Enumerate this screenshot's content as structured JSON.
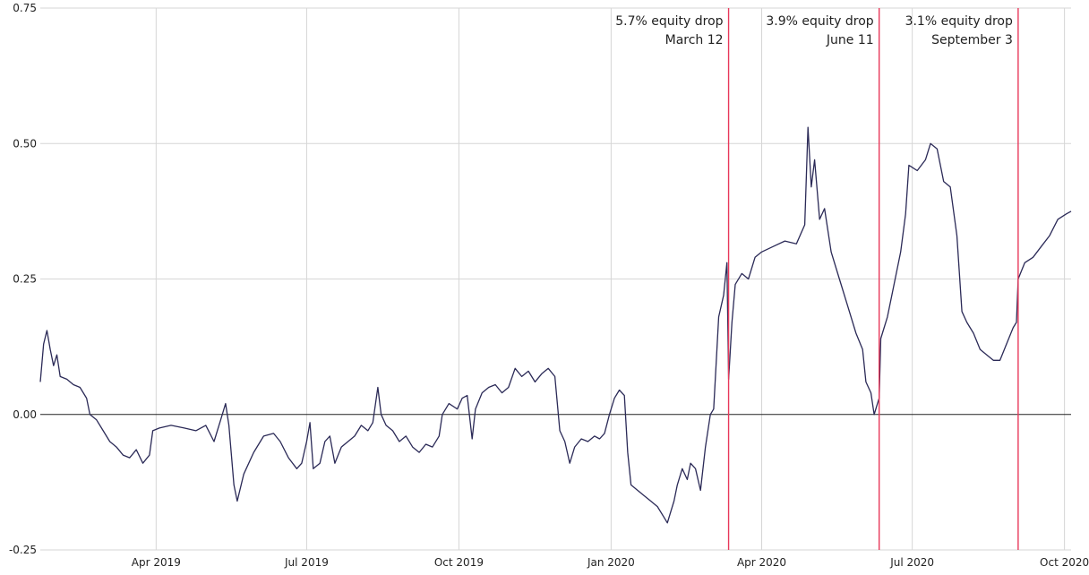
{
  "chart_data": {
    "type": "line",
    "title": "",
    "xlabel": "",
    "ylabel": "",
    "xlim": [
      "2019-01-21",
      "2020-10-05"
    ],
    "ylim": [
      -0.25,
      0.75
    ],
    "grid": true,
    "legend": "none",
    "colors": {
      "line": "#2b2a57",
      "event": "#e8385a",
      "zero": "#222222",
      "grid": "#d6d6d6"
    },
    "y_ticks": [
      {
        "value": -0.25,
        "label": "-0.25"
      },
      {
        "value": 0.0,
        "label": "0.00"
      },
      {
        "value": 0.25,
        "label": "0.25"
      },
      {
        "value": 0.5,
        "label": "0.50"
      },
      {
        "value": 0.75,
        "label": "0.75"
      }
    ],
    "x_ticks": [
      {
        "date": "2019-04-01",
        "label": "Apr 2019"
      },
      {
        "date": "2019-07-01",
        "label": "Jul 2019"
      },
      {
        "date": "2019-10-01",
        "label": "Oct 2019"
      },
      {
        "date": "2020-01-01",
        "label": "Jan 2020"
      },
      {
        "date": "2020-04-01",
        "label": "Apr 2020"
      },
      {
        "date": "2020-07-01",
        "label": "Jul 2020"
      },
      {
        "date": "2020-10-01",
        "label": "Oct 2020"
      }
    ],
    "annotations": [
      {
        "date": "2020-03-12",
        "line1": "5.7% equity drop",
        "line2": "March 12"
      },
      {
        "date": "2020-06-11",
        "line1": "3.9% equity drop",
        "line2": "June 11"
      },
      {
        "date": "2020-09-03",
        "line1": "3.1% equity drop",
        "line2": "September 3"
      }
    ],
    "series": [
      {
        "points": [
          [
            "2019-01-21",
            0.06
          ],
          [
            "2019-01-23",
            0.13
          ],
          [
            "2019-01-25",
            0.155
          ],
          [
            "2019-01-27",
            0.12
          ],
          [
            "2019-01-29",
            0.09
          ],
          [
            "2019-01-31",
            0.11
          ],
          [
            "2019-02-02",
            0.07
          ],
          [
            "2019-02-06",
            0.065
          ],
          [
            "2019-02-10",
            0.055
          ],
          [
            "2019-02-14",
            0.05
          ],
          [
            "2019-02-18",
            0.03
          ],
          [
            "2019-02-20",
            0.0
          ],
          [
            "2019-02-24",
            -0.01
          ],
          [
            "2019-02-28",
            -0.03
          ],
          [
            "2019-03-04",
            -0.05
          ],
          [
            "2019-03-08",
            -0.06
          ],
          [
            "2019-03-12",
            -0.075
          ],
          [
            "2019-03-16",
            -0.08
          ],
          [
            "2019-03-20",
            -0.065
          ],
          [
            "2019-03-24",
            -0.09
          ],
          [
            "2019-03-28",
            -0.075
          ],
          [
            "2019-03-30",
            -0.03
          ],
          [
            "2019-04-03",
            -0.025
          ],
          [
            "2019-04-10",
            -0.02
          ],
          [
            "2019-04-18",
            -0.025
          ],
          [
            "2019-04-25",
            -0.03
          ],
          [
            "2019-05-01",
            -0.02
          ],
          [
            "2019-05-06",
            -0.05
          ],
          [
            "2019-05-10",
            -0.01
          ],
          [
            "2019-05-13",
            0.02
          ],
          [
            "2019-05-15",
            -0.02
          ],
          [
            "2019-05-18",
            -0.13
          ],
          [
            "2019-05-20",
            -0.16
          ],
          [
            "2019-05-24",
            -0.11
          ],
          [
            "2019-05-30",
            -0.07
          ],
          [
            "2019-06-05",
            -0.04
          ],
          [
            "2019-06-11",
            -0.035
          ],
          [
            "2019-06-15",
            -0.05
          ],
          [
            "2019-06-20",
            -0.08
          ],
          [
            "2019-06-25",
            -0.1
          ],
          [
            "2019-06-28",
            -0.09
          ],
          [
            "2019-07-01",
            -0.05
          ],
          [
            "2019-07-03",
            -0.015
          ],
          [
            "2019-07-05",
            -0.1
          ],
          [
            "2019-07-09",
            -0.09
          ],
          [
            "2019-07-12",
            -0.05
          ],
          [
            "2019-07-15",
            -0.04
          ],
          [
            "2019-07-18",
            -0.09
          ],
          [
            "2019-07-22",
            -0.06
          ],
          [
            "2019-07-26",
            -0.05
          ],
          [
            "2019-07-30",
            -0.04
          ],
          [
            "2019-08-03",
            -0.02
          ],
          [
            "2019-08-07",
            -0.03
          ],
          [
            "2019-08-10",
            -0.015
          ],
          [
            "2019-08-13",
            0.05
          ],
          [
            "2019-08-15",
            0.0
          ],
          [
            "2019-08-18",
            -0.02
          ],
          [
            "2019-08-22",
            -0.03
          ],
          [
            "2019-08-26",
            -0.05
          ],
          [
            "2019-08-30",
            -0.04
          ],
          [
            "2019-09-03",
            -0.06
          ],
          [
            "2019-09-07",
            -0.07
          ],
          [
            "2019-09-11",
            -0.055
          ],
          [
            "2019-09-15",
            -0.06
          ],
          [
            "2019-09-19",
            -0.04
          ],
          [
            "2019-09-21",
            0.0
          ],
          [
            "2019-09-25",
            0.02
          ],
          [
            "2019-09-30",
            0.01
          ],
          [
            "2019-10-03",
            0.03
          ],
          [
            "2019-10-06",
            0.035
          ],
          [
            "2019-10-09",
            -0.045
          ],
          [
            "2019-10-11",
            0.01
          ],
          [
            "2019-10-15",
            0.04
          ],
          [
            "2019-10-19",
            0.05
          ],
          [
            "2019-10-23",
            0.055
          ],
          [
            "2019-10-27",
            0.04
          ],
          [
            "2019-10-31",
            0.05
          ],
          [
            "2019-11-04",
            0.085
          ],
          [
            "2019-11-08",
            0.07
          ],
          [
            "2019-11-12",
            0.08
          ],
          [
            "2019-11-16",
            0.06
          ],
          [
            "2019-11-20",
            0.075
          ],
          [
            "2019-11-24",
            0.085
          ],
          [
            "2019-11-28",
            0.07
          ],
          [
            "2019-12-01",
            -0.03
          ],
          [
            "2019-12-04",
            -0.05
          ],
          [
            "2019-12-07",
            -0.09
          ],
          [
            "2019-12-10",
            -0.06
          ],
          [
            "2019-12-14",
            -0.045
          ],
          [
            "2019-12-18",
            -0.05
          ],
          [
            "2019-12-22",
            -0.04
          ],
          [
            "2019-12-25",
            -0.045
          ],
          [
            "2019-12-28",
            -0.035
          ],
          [
            "2019-12-31",
            0.0
          ],
          [
            "2020-01-03",
            0.03
          ],
          [
            "2020-01-06",
            0.045
          ],
          [
            "2020-01-09",
            0.035
          ],
          [
            "2020-01-11",
            -0.07
          ],
          [
            "2020-01-13",
            -0.13
          ],
          [
            "2020-01-17",
            -0.14
          ],
          [
            "2020-01-21",
            -0.15
          ],
          [
            "2020-01-25",
            -0.16
          ],
          [
            "2020-01-29",
            -0.17
          ],
          [
            "2020-02-02",
            -0.19
          ],
          [
            "2020-02-04",
            -0.2
          ],
          [
            "2020-02-06",
            -0.18
          ],
          [
            "2020-02-08",
            -0.16
          ],
          [
            "2020-02-10",
            -0.13
          ],
          [
            "2020-02-13",
            -0.1
          ],
          [
            "2020-02-16",
            -0.12
          ],
          [
            "2020-02-18",
            -0.09
          ],
          [
            "2020-02-21",
            -0.1
          ],
          [
            "2020-02-24",
            -0.14
          ],
          [
            "2020-02-27",
            -0.06
          ],
          [
            "2020-03-01",
            0.0
          ],
          [
            "2020-03-03",
            0.01
          ],
          [
            "2020-03-06",
            0.18
          ],
          [
            "2020-03-09",
            0.22
          ],
          [
            "2020-03-11",
            0.28
          ],
          [
            "2020-03-12",
            0.065
          ],
          [
            "2020-03-14",
            0.17
          ],
          [
            "2020-03-16",
            0.24
          ],
          [
            "2020-03-20",
            0.26
          ],
          [
            "2020-03-24",
            0.25
          ],
          [
            "2020-03-28",
            0.29
          ],
          [
            "2020-04-01",
            0.3
          ],
          [
            "2020-04-08",
            0.31
          ],
          [
            "2020-04-15",
            0.32
          ],
          [
            "2020-04-22",
            0.315
          ],
          [
            "2020-04-27",
            0.35
          ],
          [
            "2020-04-29",
            0.53
          ],
          [
            "2020-05-01",
            0.42
          ],
          [
            "2020-05-03",
            0.47
          ],
          [
            "2020-05-06",
            0.36
          ],
          [
            "2020-05-09",
            0.38
          ],
          [
            "2020-05-13",
            0.3
          ],
          [
            "2020-05-18",
            0.25
          ],
          [
            "2020-05-23",
            0.2
          ],
          [
            "2020-05-28",
            0.15
          ],
          [
            "2020-06-01",
            0.12
          ],
          [
            "2020-06-03",
            0.06
          ],
          [
            "2020-06-06",
            0.04
          ],
          [
            "2020-06-08",
            0.0
          ],
          [
            "2020-06-10",
            0.02
          ],
          [
            "2020-06-11",
            0.03
          ],
          [
            "2020-06-12",
            0.14
          ],
          [
            "2020-06-16",
            0.18
          ],
          [
            "2020-06-20",
            0.24
          ],
          [
            "2020-06-24",
            0.3
          ],
          [
            "2020-06-27",
            0.37
          ],
          [
            "2020-06-29",
            0.46
          ],
          [
            "2020-07-04",
            0.45
          ],
          [
            "2020-07-09",
            0.47
          ],
          [
            "2020-07-12",
            0.5
          ],
          [
            "2020-07-16",
            0.49
          ],
          [
            "2020-07-20",
            0.43
          ],
          [
            "2020-07-24",
            0.42
          ],
          [
            "2020-07-28",
            0.33
          ],
          [
            "2020-07-31",
            0.19
          ],
          [
            "2020-08-03",
            0.17
          ],
          [
            "2020-08-07",
            0.15
          ],
          [
            "2020-08-11",
            0.12
          ],
          [
            "2020-08-15",
            0.11
          ],
          [
            "2020-08-19",
            0.1
          ],
          [
            "2020-08-23",
            0.1
          ],
          [
            "2020-08-27",
            0.13
          ],
          [
            "2020-08-31",
            0.16
          ],
          [
            "2020-09-02",
            0.17
          ],
          [
            "2020-09-03",
            0.25
          ],
          [
            "2020-09-07",
            0.28
          ],
          [
            "2020-09-12",
            0.29
          ],
          [
            "2020-09-17",
            0.31
          ],
          [
            "2020-09-22",
            0.33
          ],
          [
            "2020-09-27",
            0.36
          ],
          [
            "2020-10-02",
            0.37
          ],
          [
            "2020-10-05",
            0.375
          ]
        ]
      }
    ]
  }
}
